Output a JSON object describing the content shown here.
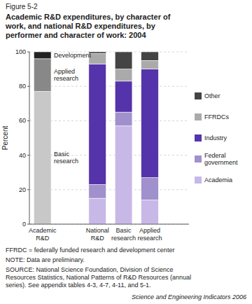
{
  "chart_data": {
    "type": "bar",
    "stacked": true,
    "figure_label": "Figure 5-2",
    "title": "Academic R&D expenditures, by character of\nwork, and national R&D expenditures, by\nperformer and character of work: 2004",
    "ylabel": "Percent",
    "categories": [
      "Academic\nR&D",
      "National\nR&D",
      "Basic\nresearch",
      "Applied\nresearch"
    ],
    "series": [
      {
        "name": "Basic\nresearch",
        "color": "#c8c8c8",
        "values": [
          77,
          null,
          null,
          null
        ]
      },
      {
        "name": "Applied\nresearch",
        "color": "#888888",
        "values": [
          19,
          null,
          null,
          null
        ]
      },
      {
        "name": "Development",
        "color": "#222222",
        "values": [
          4,
          null,
          null,
          null
        ]
      },
      {
        "name": "Academia",
        "color": "#c8b8e8",
        "values": [
          null,
          15,
          57,
          14
        ]
      },
      {
        "name": "Federal\ngovernment",
        "color": "#a090cc",
        "values": [
          null,
          8,
          8,
          13
        ]
      },
      {
        "name": "Industry",
        "color": "#5533aa",
        "values": [
          null,
          70,
          18,
          63
        ]
      },
      {
        "name": "FFRDCs",
        "color": "#aaaaaa",
        "values": [
          null,
          6,
          7,
          5
        ]
      },
      {
        "name": "Other",
        "color": "#444444",
        "values": [
          null,
          1,
          10,
          5
        ]
      }
    ],
    "ylim": [
      0,
      100
    ],
    "yticks": [
      0,
      20,
      40,
      60,
      80,
      100
    ],
    "grid": true,
    "legend": "right",
    "footnotes": [
      "FFRDC = federally funded research and development center",
      "NOTE: Data are preliminary.",
      "SOURCE: National Science Foundation, Division of Science\nResources Statistics, National Patterns of R&D Resources (annual\nseries). See appendix tables 4-3, 4-7, 4-11, and 5-1.",
      "Science and Engineering Indicators 2006"
    ]
  }
}
